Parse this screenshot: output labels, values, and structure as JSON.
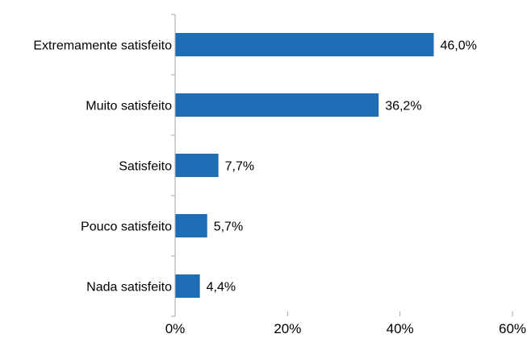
{
  "chart_data": {
    "type": "bar",
    "orientation": "horizontal",
    "categories": [
      "Extremamente satisfeito",
      "Muito satisfeito",
      "Satisfeito",
      "Pouco satisfeito",
      "Nada satisfeito"
    ],
    "values": [
      46.0,
      36.2,
      7.7,
      5.7,
      4.4
    ],
    "value_labels": [
      "46,0%",
      "36,2%",
      "7,7%",
      "5,7%",
      "4,4%"
    ],
    "xlim": [
      0,
      60
    ],
    "xticks": [
      0,
      20,
      40,
      60
    ],
    "xtick_labels": [
      "0%",
      "20%",
      "40%",
      "60%"
    ],
    "title": "",
    "xlabel": "",
    "ylabel": "",
    "grid": false,
    "legend": "none",
    "bar_color": "#1f6db5",
    "axis_color": "#a6a6a6"
  }
}
